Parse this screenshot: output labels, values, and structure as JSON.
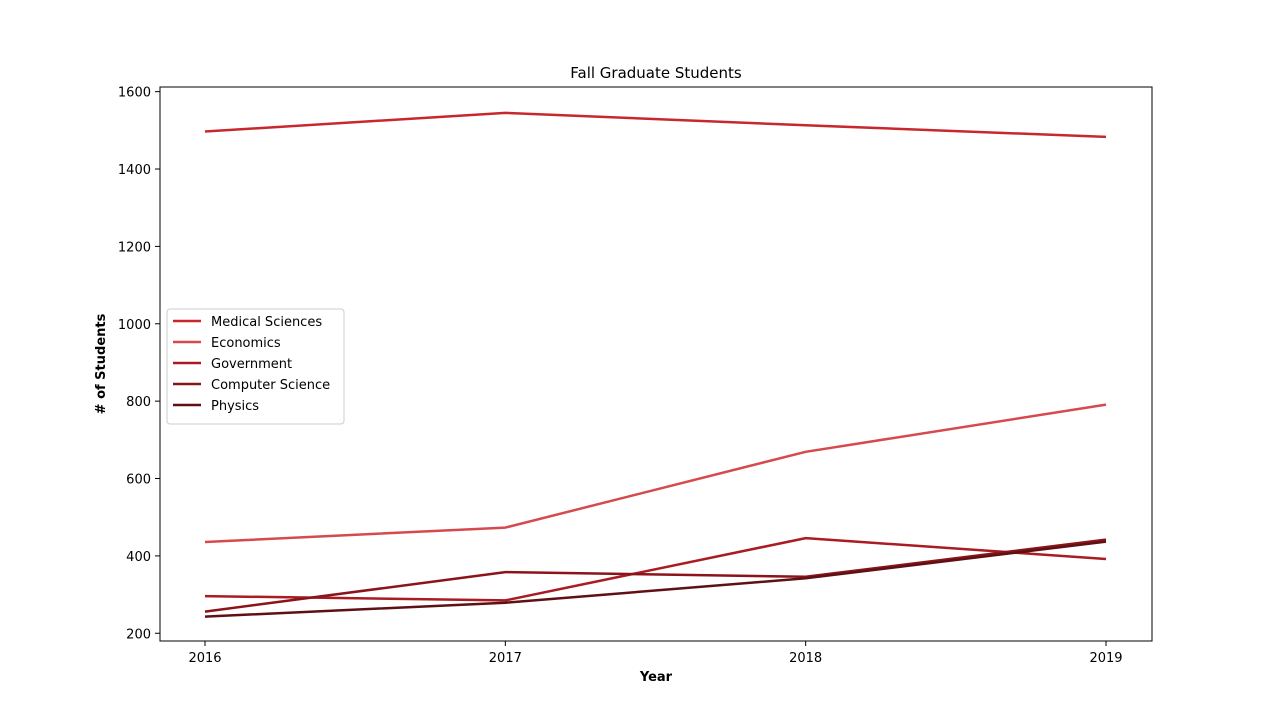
{
  "chart_data": {
    "type": "line",
    "title": "Fall Graduate Students",
    "xlabel": "Year",
    "ylabel": "# of Students",
    "x": [
      "2016",
      "2017",
      "2018",
      "2019"
    ],
    "ylim": [
      180,
      1612
    ],
    "yticks": [
      200,
      400,
      600,
      800,
      1000,
      1200,
      1400,
      1600
    ],
    "grid": false,
    "legend_position": "center-left",
    "series": [
      {
        "name": "Medical Sciences",
        "color": "#c8282d",
        "values": [
          1497,
          1545,
          1513,
          1483
        ]
      },
      {
        "name": "Economics",
        "color": "#d64a4e",
        "values": [
          436,
          473,
          669,
          791
        ]
      },
      {
        "name": "Government",
        "color": "#a91c24",
        "values": [
          296,
          285,
          446,
          392
        ]
      },
      {
        "name": "Computer Science",
        "color": "#8a141a",
        "values": [
          256,
          358,
          346,
          442
        ]
      },
      {
        "name": "Physics",
        "color": "#5e1014",
        "values": [
          243,
          279,
          342,
          437
        ]
      }
    ]
  }
}
